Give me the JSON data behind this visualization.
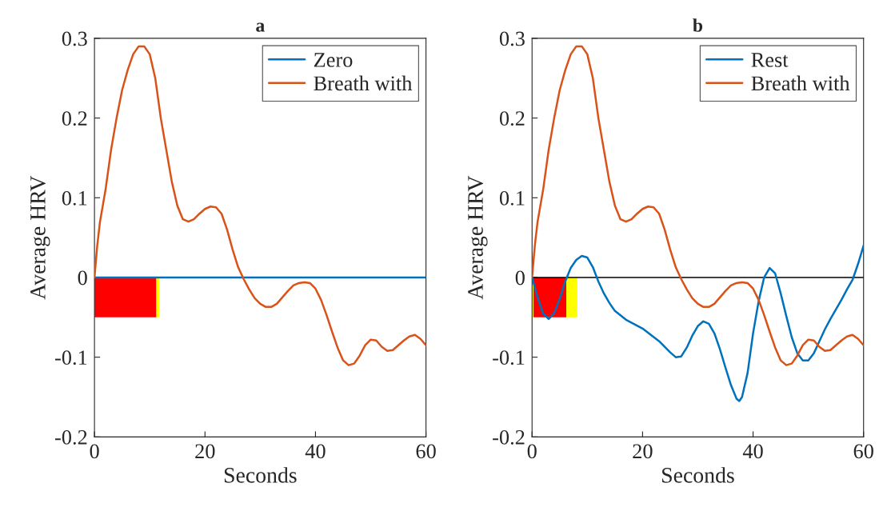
{
  "chart_data": [
    {
      "type": "line",
      "title": "a",
      "xlabel": "Seconds",
      "ylabel": "Average HRV",
      "xlim": [
        0,
        60
      ],
      "ylim": [
        -0.2,
        0.3
      ],
      "xticks": [
        0,
        20,
        40,
        60
      ],
      "yticks": [
        -0.2,
        -0.1,
        0,
        0.1,
        0.2,
        0.3
      ],
      "grid": false,
      "legend": "top right",
      "ref_lines": [
        {
          "axis": "y",
          "value": 0,
          "color": "#000000"
        }
      ],
      "series": [
        {
          "type": "area",
          "color": "#ff0000",
          "x": [
            0,
            11.2
          ],
          "values": [
            -0.05,
            -0.05
          ]
        },
        {
          "type": "area",
          "color": "#ffff00",
          "x": [
            11.2,
            11.7
          ],
          "values": [
            -0.05,
            -0.05
          ]
        },
        {
          "name": "Zero",
          "color": "#0072bd",
          "x": [
            0,
            60
          ],
          "values": [
            0,
            0
          ]
        },
        {
          "name": "Breath with",
          "color": "#d95319",
          "x": [
            0,
            0.5,
            1,
            2,
            3,
            4,
            5,
            6,
            7,
            8,
            9,
            10,
            11,
            12,
            13,
            14,
            15,
            16,
            17,
            18,
            19,
            20,
            21,
            22,
            23,
            24,
            25,
            26,
            27,
            28,
            29,
            30,
            31,
            32,
            33,
            34,
            35,
            36,
            37,
            38,
            39,
            40,
            41,
            42,
            43,
            44,
            45,
            46,
            47,
            48,
            49,
            50,
            51,
            52,
            53,
            54,
            55,
            56,
            57,
            58,
            59,
            60
          ],
          "values": [
            0,
            0.04,
            0.07,
            0.11,
            0.16,
            0.2,
            0.235,
            0.26,
            0.28,
            0.29,
            0.29,
            0.28,
            0.25,
            0.2,
            0.16,
            0.12,
            0.09,
            0.073,
            0.07,
            0.073,
            0.08,
            0.086,
            0.089,
            0.088,
            0.08,
            0.06,
            0.035,
            0.013,
            -0.002,
            -0.015,
            -0.026,
            -0.033,
            -0.037,
            -0.037,
            -0.033,
            -0.025,
            -0.017,
            -0.01,
            -0.007,
            -0.006,
            -0.007,
            -0.014,
            -0.028,
            -0.047,
            -0.068,
            -0.088,
            -0.104,
            -0.11,
            -0.108,
            -0.098,
            -0.085,
            -0.078,
            -0.079,
            -0.087,
            -0.092,
            -0.091,
            -0.085,
            -0.079,
            -0.074,
            -0.072,
            -0.077,
            -0.085
          ]
        }
      ]
    },
    {
      "type": "line",
      "title": "b",
      "xlabel": "Seconds",
      "ylabel": "Average HRV",
      "xlim": [
        0,
        60
      ],
      "ylim": [
        -0.2,
        0.3
      ],
      "xticks": [
        0,
        20,
        40,
        60
      ],
      "yticks": [
        -0.2,
        -0.1,
        0,
        0.1,
        0.2,
        0.3
      ],
      "grid": false,
      "legend": "top right",
      "ref_lines": [
        {
          "axis": "y",
          "value": 0,
          "color": "#000000"
        }
      ],
      "series": [
        {
          "type": "area",
          "color": "#ffff00",
          "x": [
            0,
            0.25
          ],
          "values": [
            -0.05,
            -0.05
          ]
        },
        {
          "type": "area",
          "color": "#ff0000",
          "x": [
            0.25,
            6.2
          ],
          "values": [
            -0.05,
            -0.05
          ]
        },
        {
          "type": "area",
          "color": "#ffff00",
          "x": [
            6.2,
            8.2
          ],
          "values": [
            -0.05,
            -0.05
          ]
        },
        {
          "name": "Rest",
          "color": "#0072bd",
          "x": [
            0,
            1,
            2,
            3,
            4,
            5,
            6,
            7,
            8,
            9,
            10,
            11,
            12,
            13,
            14,
            15,
            17,
            20,
            23,
            25,
            26,
            27,
            28,
            29,
            30,
            31,
            32,
            33,
            34,
            35,
            36,
            37,
            37.5,
            38,
            39,
            40,
            41,
            42,
            43,
            44,
            45,
            46,
            47,
            48,
            49,
            50,
            51,
            52,
            53,
            54,
            55,
            56,
            57,
            58,
            59,
            60
          ],
          "values": [
            0,
            -0.025,
            -0.045,
            -0.052,
            -0.045,
            -0.027,
            -0.005,
            0.012,
            0.022,
            0.027,
            0.025,
            0.013,
            -0.005,
            -0.02,
            -0.032,
            -0.042,
            -0.053,
            -0.064,
            -0.08,
            -0.094,
            -0.1,
            -0.099,
            -0.088,
            -0.073,
            -0.061,
            -0.055,
            -0.058,
            -0.07,
            -0.09,
            -0.113,
            -0.135,
            -0.152,
            -0.155,
            -0.15,
            -0.12,
            -0.07,
            -0.03,
            0.0,
            0.012,
            0.005,
            -0.02,
            -0.048,
            -0.075,
            -0.095,
            -0.104,
            -0.104,
            -0.095,
            -0.08,
            -0.065,
            -0.052,
            -0.04,
            -0.028,
            -0.015,
            -0.003,
            0.017,
            0.04
          ]
        },
        {
          "name": "Breath with",
          "color": "#d95319",
          "x": [
            0,
            0.5,
            1,
            2,
            3,
            4,
            5,
            6,
            7,
            8,
            9,
            10,
            11,
            12,
            13,
            14,
            15,
            16,
            17,
            18,
            19,
            20,
            21,
            22,
            23,
            24,
            25,
            26,
            27,
            28,
            29,
            30,
            31,
            32,
            33,
            34,
            35,
            36,
            37,
            38,
            39,
            40,
            41,
            42,
            43,
            44,
            45,
            46,
            47,
            48,
            49,
            50,
            51,
            52,
            53,
            54,
            55,
            56,
            57,
            58,
            59,
            60
          ],
          "values": [
            0,
            0.04,
            0.07,
            0.11,
            0.16,
            0.2,
            0.235,
            0.26,
            0.28,
            0.29,
            0.29,
            0.28,
            0.25,
            0.2,
            0.16,
            0.12,
            0.09,
            0.073,
            0.07,
            0.073,
            0.08,
            0.086,
            0.089,
            0.088,
            0.08,
            0.06,
            0.035,
            0.013,
            -0.002,
            -0.015,
            -0.026,
            -0.033,
            -0.037,
            -0.037,
            -0.033,
            -0.025,
            -0.017,
            -0.01,
            -0.007,
            -0.006,
            -0.007,
            -0.014,
            -0.028,
            -0.047,
            -0.068,
            -0.088,
            -0.104,
            -0.11,
            -0.108,
            -0.098,
            -0.085,
            -0.078,
            -0.079,
            -0.087,
            -0.092,
            -0.091,
            -0.085,
            -0.079,
            -0.074,
            -0.072,
            -0.077,
            -0.085
          ]
        }
      ]
    }
  ]
}
